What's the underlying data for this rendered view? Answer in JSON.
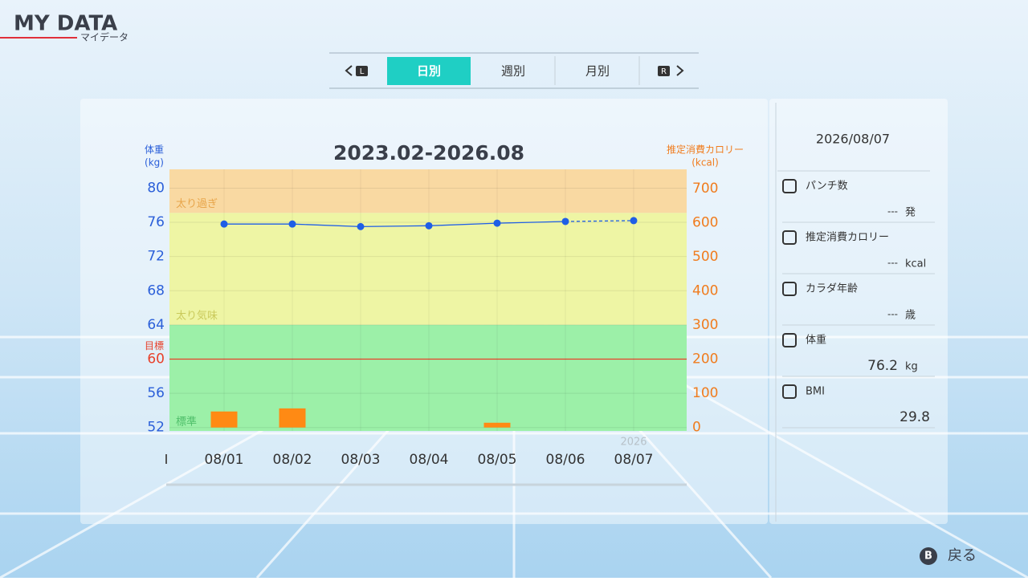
{
  "header": {
    "title": "MY DATA",
    "subtitle": "マイデータ"
  },
  "tabs": {
    "left_button": "L",
    "right_button": "R",
    "items": [
      "日別",
      "週別",
      "月別"
    ],
    "active": 0
  },
  "chart_data": {
    "type": "line",
    "title": "2023.02-2026.08",
    "ylabel": "体重",
    "ylabel_unit": "(kg)",
    "y2label": "推定消費カロリー",
    "y2label_unit": "(kcal)",
    "categories": [
      "08/01",
      "08/02",
      "08/03",
      "08/04",
      "08/05",
      "08/06",
      "08/07"
    ],
    "year_label": "2026",
    "series": [
      {
        "type": "line",
        "color": "#1f5ee6",
        "values": [
          75.8,
          75.8,
          75.5,
          75.6,
          75.9,
          76.1,
          76.2
        ],
        "last_segment_style": "dashed"
      },
      {
        "type": "bar",
        "axis": "y2",
        "color": "#ff8a14",
        "values": [
          47,
          56,
          null,
          null,
          14,
          null,
          null
        ]
      }
    ],
    "ylim": [
      51.6,
      82.2
    ],
    "yticks": [
      52,
      56,
      60,
      64,
      68,
      72,
      76,
      80
    ],
    "y2lim": [
      -10,
      756
    ],
    "y2ticks": [
      0,
      100,
      200,
      300,
      400,
      500,
      600,
      700
    ],
    "bands": [
      {
        "label": "太り過ぎ",
        "from": 77.1,
        "to": 82.2,
        "color": "#f9d9a2",
        "text_color": "#e8a54a"
      },
      {
        "label": "太り気味",
        "from": 64,
        "to": 77.1,
        "color": "#eef5a4",
        "text_color": "#c9c95a"
      },
      {
        "label": "標準",
        "from": 51.6,
        "to": 64,
        "color": "#9cf0a8",
        "text_color": "#4fbf6a"
      }
    ],
    "target": {
      "label": "目標",
      "value": 60,
      "color": "#e8402a"
    },
    "grid": true
  },
  "side_panel": {
    "date": "2026/08/07",
    "items": [
      {
        "label": "パンチ数",
        "value": "---",
        "unit": "発"
      },
      {
        "label": "推定消費カロリー",
        "value": "---",
        "unit": "kcal"
      },
      {
        "label": "カラダ年齢",
        "value": "---",
        "unit": "歳"
      },
      {
        "label": "体重",
        "value": 76.2,
        "unit": "kg"
      },
      {
        "label": "BMI",
        "value": 29.8
      }
    ]
  },
  "footer": {
    "button": "B",
    "label": "戻る"
  }
}
